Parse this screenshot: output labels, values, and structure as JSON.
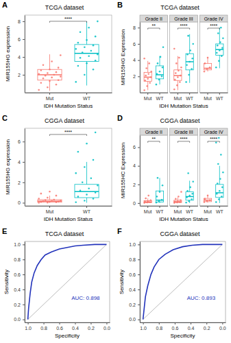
{
  "chart_data": [
    {
      "panel_label": "A",
      "type": "box",
      "title": "TCGA dataset",
      "x_label": "IDH Mutation Status",
      "y_label": "MIR155HG expression",
      "categories": [
        "Mut",
        "WT"
      ],
      "colors": [
        "#F8766D",
        "#00BFC4"
      ],
      "ylim": [
        0,
        8.7
      ],
      "yticks": [
        2,
        4,
        6,
        8
      ],
      "annotation": "****",
      "boxes": [
        {
          "min": 0.2,
          "q1": 1.4,
          "median": 2.0,
          "q3": 2.6,
          "max": 4.3
        },
        {
          "min": 0.8,
          "q1": 3.5,
          "median": 4.4,
          "q3": 5.4,
          "max": 8.0
        }
      ],
      "points": [
        [
          0.3,
          0.6,
          0.9,
          1.1,
          1.3,
          1.4,
          1.6,
          1.7,
          1.8,
          1.9,
          2.0,
          2.1,
          2.2,
          2.3,
          2.5,
          2.6,
          2.8,
          3.1,
          3.5,
          4.2
        ],
        [
          1.2,
          2.0,
          2.6,
          3.0,
          3.3,
          3.6,
          3.9,
          4.1,
          4.3,
          4.5,
          4.7,
          4.9,
          5.1,
          5.3,
          5.6,
          5.9,
          6.3,
          6.8,
          7.3,
          8.0
        ]
      ]
    },
    {
      "panel_label": "B",
      "type": "box",
      "title": "TCGA dataset",
      "x_label": "IDH Mutation Status",
      "y_label": "MIR155HG Expression",
      "categories": [
        "Mut",
        "WT"
      ],
      "colors": [
        "#F8766D",
        "#00BFC4"
      ],
      "ylim": [
        0,
        8.7
      ],
      "yticks": [
        2,
        4,
        6,
        8
      ],
      "facets": [
        {
          "title": "Grade II",
          "annotation": "**",
          "boxes": [
            {
              "min": 0.3,
              "q1": 1.4,
              "median": 1.9,
              "q3": 2.5,
              "max": 3.9
            },
            {
              "min": 1.0,
              "q1": 1.7,
              "median": 2.2,
              "q3": 3.3,
              "max": 4.5
            }
          ],
          "points": [
            [
              0.3,
              0.8,
              1.2,
              1.5,
              1.7,
              1.9,
              2.1,
              2.3,
              2.6,
              3.0,
              3.6,
              4.2
            ],
            [
              1.0,
              1.6,
              2.0,
              2.3,
              2.6,
              3.1,
              3.6,
              4.4,
              5.6
            ]
          ]
        },
        {
          "title": "Grade III",
          "annotation": "****",
          "boxes": [
            {
              "min": 0.3,
              "q1": 1.5,
              "median": 2.1,
              "q3": 2.8,
              "max": 4.5
            },
            {
              "min": 1.2,
              "q1": 2.8,
              "median": 3.8,
              "q3": 4.8,
              "max": 7.2
            }
          ],
          "points": [
            [
              0.4,
              0.9,
              1.3,
              1.6,
              1.9,
              2.1,
              2.4,
              2.7,
              3.1,
              3.6,
              4.3,
              5.4
            ],
            [
              1.3,
              2.2,
              2.9,
              3.4,
              3.8,
              4.2,
              4.7,
              5.2,
              6.0,
              7.0
            ]
          ]
        },
        {
          "title": "Grade IV",
          "annotation": "****",
          "boxes": [
            {
              "min": 2.6,
              "q1": 2.8,
              "median": 3.0,
              "q3": 3.6,
              "max": 4.4
            },
            {
              "min": 3.0,
              "q1": 4.6,
              "median": 5.3,
              "q3": 6.0,
              "max": 8.0
            }
          ],
          "points": [
            [
              2.6,
              2.9,
              3.1,
              3.6,
              4.3
            ],
            [
              3.1,
              3.9,
              4.5,
              4.9,
              5.2,
              5.5,
              5.8,
              6.2,
              6.7,
              7.3,
              8.0
            ]
          ]
        }
      ]
    },
    {
      "panel_label": "C",
      "type": "box",
      "title": "CGGA dataset",
      "x_label": "IDH Mutation Status",
      "y_label": "MIR155HG expression",
      "categories": [
        "Mut",
        "WT"
      ],
      "colors": [
        "#F8766D",
        "#00BFC4"
      ],
      "ylim": [
        -0.3,
        7.3
      ],
      "yticks": [
        0,
        2,
        4,
        6
      ],
      "annotation": "****",
      "boxes": [
        {
          "min": 0.0,
          "q1": 0.05,
          "median": 0.15,
          "q3": 0.3,
          "max": 0.7
        },
        {
          "min": 0.0,
          "q1": 0.5,
          "median": 1.1,
          "q3": 1.8,
          "max": 4.0
        }
      ],
      "points": [
        [
          0.0,
          0.02,
          0.05,
          0.08,
          0.1,
          0.12,
          0.15,
          0.18,
          0.2,
          0.25,
          0.3,
          0.4,
          0.5,
          0.7,
          0.9,
          1.1
        ],
        [
          0.05,
          0.2,
          0.4,
          0.6,
          0.8,
          1.0,
          1.2,
          1.4,
          1.7,
          2.0,
          2.4,
          2.9,
          3.5,
          4.2,
          5.0,
          5.8,
          6.9
        ]
      ]
    },
    {
      "panel_label": "D",
      "type": "box",
      "title": "CGGA dataset",
      "x_label": "IDH Mutation Status",
      "y_label": "MIR155HC Expression",
      "categories": [
        "Mut",
        "WT"
      ],
      "colors": [
        "#F8766D",
        "#00BFC4"
      ],
      "ylim": [
        -0.3,
        7.3
      ],
      "yticks": [
        0,
        2,
        4,
        6
      ],
      "facets": [
        {
          "title": "Grade II",
          "annotation": "**",
          "boxes": [
            {
              "min": 0.0,
              "q1": 0.05,
              "median": 0.1,
              "q3": 0.25,
              "max": 0.5
            },
            {
              "min": 0.0,
              "q1": 0.1,
              "median": 0.3,
              "q3": 1.3,
              "max": 2.7
            }
          ],
          "points": [
            [
              0.02,
              0.06,
              0.1,
              0.14,
              0.2,
              0.3,
              0.5,
              0.8
            ],
            [
              0.05,
              0.2,
              0.35,
              0.7,
              1.2,
              1.9,
              2.7
            ]
          ]
        },
        {
          "title": "Grade III",
          "annotation": "****",
          "boxes": [
            {
              "min": 0.0,
              "q1": 0.05,
              "median": 0.15,
              "q3": 0.3,
              "max": 0.6
            },
            {
              "min": 0.0,
              "q1": 0.3,
              "median": 0.7,
              "q3": 1.2,
              "max": 2.4
            }
          ],
          "points": [
            [
              0.02,
              0.06,
              0.1,
              0.15,
              0.2,
              0.3,
              0.45,
              0.7,
              1.2
            ],
            [
              0.05,
              0.2,
              0.4,
              0.6,
              0.8,
              1.0,
              1.3,
              1.7,
              2.3,
              3.2
            ]
          ]
        },
        {
          "title": "Grade IV",
          "annotation": "****",
          "boxes": [
            {
              "min": 0.05,
              "q1": 0.15,
              "median": 0.3,
              "q3": 0.5,
              "max": 0.9
            },
            {
              "min": 0.0,
              "q1": 0.6,
              "median": 1.1,
              "q3": 2.0,
              "max": 4.0
            }
          ],
          "points": [
            [
              0.1,
              0.2,
              0.3,
              0.45,
              0.8
            ],
            [
              0.1,
              0.4,
              0.7,
              1.0,
              1.3,
              1.7,
              2.1,
              2.6,
              3.3,
              4.2,
              5.2,
              6.5,
              7.0
            ]
          ]
        }
      ]
    },
    {
      "panel_label": "E",
      "type": "line",
      "title": "TCGA dataset",
      "x_label": "Specificity",
      "y_label": "Sensitivity",
      "color": "#2233BB",
      "annotation": "AUC: 0.898",
      "x": [
        1.0,
        0.99,
        0.97,
        0.95,
        0.92,
        0.88,
        0.83,
        0.78,
        0.7,
        0.6,
        0.5,
        0.4,
        0.3,
        0.15,
        0.0
      ],
      "values": [
        0.0,
        0.15,
        0.35,
        0.5,
        0.62,
        0.72,
        0.8,
        0.86,
        0.9,
        0.94,
        0.96,
        0.98,
        0.99,
        1.0,
        1.0
      ],
      "xlim": [
        1.04,
        -0.04
      ],
      "ylim": [
        -0.04,
        1.04
      ],
      "xticks": [
        {
          "value": 1,
          "label": "1.0"
        },
        0.8,
        0.6,
        0.4,
        0.2,
        {
          "value": 0,
          "label": "0.0"
        }
      ],
      "yticks": [
        {
          "value": 0,
          "label": "0.0"
        },
        0.2,
        0.4,
        0.6,
        0.8,
        {
          "value": 1,
          "label": "1.0"
        }
      ]
    },
    {
      "panel_label": "F",
      "type": "line",
      "title": "CGGA dataset",
      "x_label": "Specificity",
      "y_label": "Sensitivity",
      "color": "#2233BB",
      "annotation": "AUC: 0.893",
      "x": [
        1.0,
        0.99,
        0.97,
        0.94,
        0.9,
        0.86,
        0.8,
        0.72,
        0.62,
        0.5,
        0.38,
        0.25,
        0.0
      ],
      "values": [
        0.0,
        0.1,
        0.3,
        0.45,
        0.6,
        0.7,
        0.8,
        0.87,
        0.93,
        0.97,
        0.99,
        1.0,
        1.0
      ],
      "xlim": [
        1.04,
        -0.04
      ],
      "ylim": [
        -0.04,
        1.04
      ],
      "xticks": [
        {
          "value": 1,
          "label": "1.0"
        },
        0.8,
        0.6,
        0.4,
        0.2,
        {
          "value": 0,
          "label": "0.0"
        }
      ],
      "yticks": [
        {
          "value": 0,
          "label": "0.0"
        },
        0.2,
        0.4,
        0.6,
        0.8,
        {
          "value": 1,
          "label": "1.0"
        }
      ]
    }
  ]
}
